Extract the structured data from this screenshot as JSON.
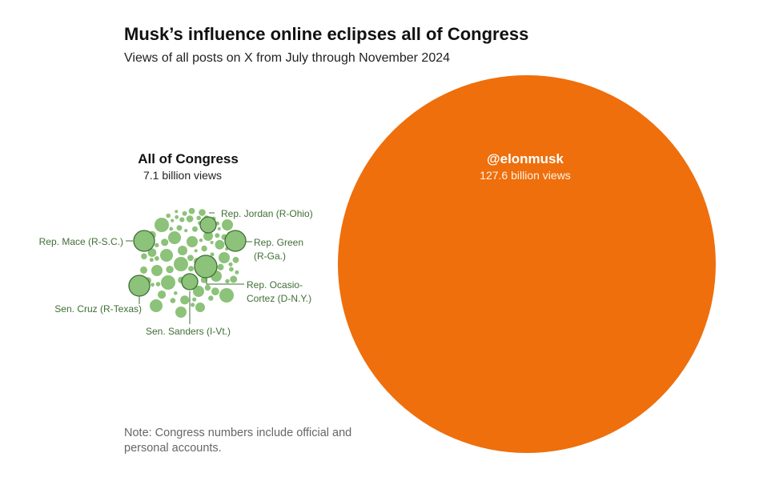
{
  "title": "Musk’s influence online eclipses all of Congress",
  "subtitle": "Views of all posts on X from July through November 2024",
  "note": "Note: Congress numbers include official and personal accounts.",
  "colors": {
    "musk": "#ee6f0c",
    "congress_fill": "#8cc279",
    "congress_stroke": "#3f6e35",
    "label_text": "#3f6e35"
  },
  "chart_data": {
    "type": "bubble",
    "units": "billion views",
    "series": [
      {
        "name": "All of Congress",
        "value": 7.1,
        "label": "7.1 billion views"
      },
      {
        "name": "@elonmusk",
        "value": 127.6,
        "label": "127.6 billion views"
      }
    ],
    "congress_members_highlighted": [
      {
        "name": "Rep. Jordan (R-Ohio)"
      },
      {
        "name": "Rep. Mace (R-S.C.)"
      },
      {
        "name": "Rep. Green (R-Ga.)"
      },
      {
        "name": "Rep. Ocasio-Cortez (D-N.Y.)"
      },
      {
        "name": "Sen. Cruz (R-Texas)"
      },
      {
        "name": "Sen. Sanders (I-Vt.)"
      }
    ]
  },
  "labels": {
    "congress_title": "All of Congress",
    "congress_views": "7.1 billion views",
    "musk_title": "@elonmusk",
    "musk_views": "127.6 billion views",
    "jordan": "Rep. Jordan (R-Ohio)",
    "mace": "Rep. Mace (R-S.C.)",
    "green_1": "Rep. Green",
    "green_2": "(R-Ga.)",
    "aoc_1": "Rep. Ocasio-",
    "aoc_2": "Cortez (D-N.Y.)",
    "cruz": "Sen. Cruz (R-Texas)",
    "sanders": "Sen. Sanders (I-Vt.)"
  }
}
